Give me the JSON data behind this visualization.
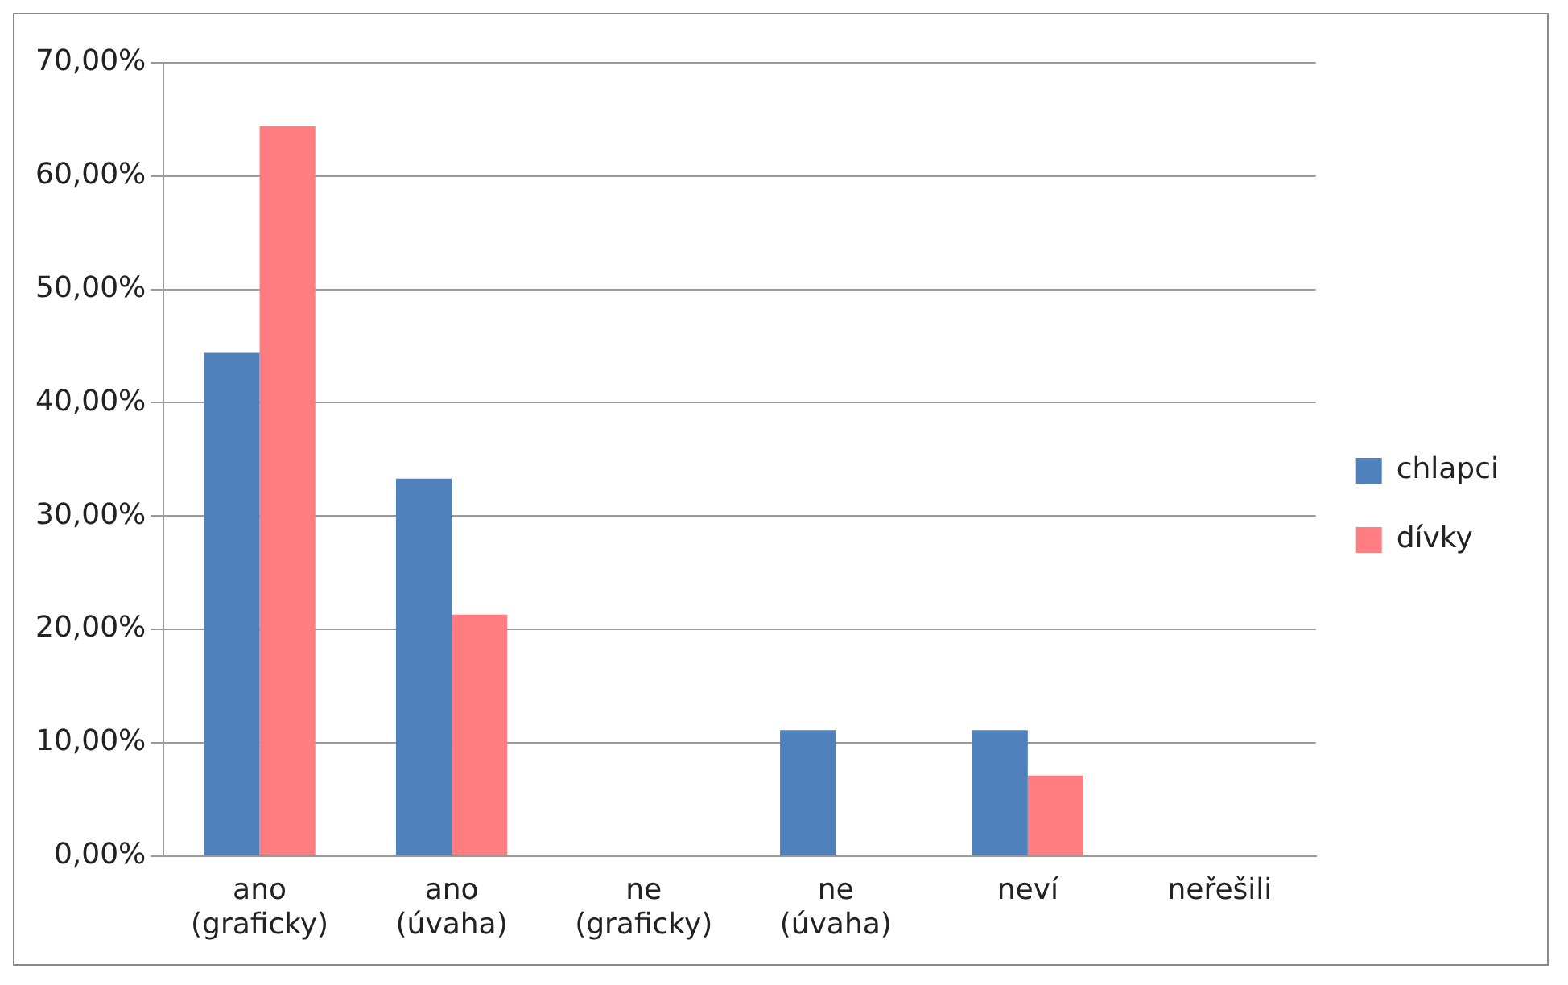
{
  "chart_data": {
    "type": "bar",
    "categories": [
      "ano\n(graficky)",
      "ano\n(úvaha)",
      "ne\n(graficky)",
      "ne\n(úvaha)",
      "neví",
      "neřešili"
    ],
    "series": [
      {
        "name": "chlapci",
        "color": "#4f81bd",
        "values": [
          44.4,
          33.3,
          0,
          11.1,
          11.1,
          0
        ]
      },
      {
        "name": "dívky",
        "color": "#ff7c80",
        "values": [
          64.4,
          21.3,
          0,
          0,
          7.1,
          0
        ]
      }
    ],
    "ylim": [
      0,
      70
    ],
    "yticks": [
      {
        "value": 0,
        "label": "0,00%"
      },
      {
        "value": 10,
        "label": "10,00%"
      },
      {
        "value": 20,
        "label": "20,00%"
      },
      {
        "value": 30,
        "label": "30,00%"
      },
      {
        "value": 40,
        "label": "40,00%"
      },
      {
        "value": 50,
        "label": "50,00%"
      },
      {
        "value": 60,
        "label": "60,00%"
      },
      {
        "value": 70,
        "label": "70,00%"
      }
    ],
    "grid": "y",
    "legend": "right"
  }
}
